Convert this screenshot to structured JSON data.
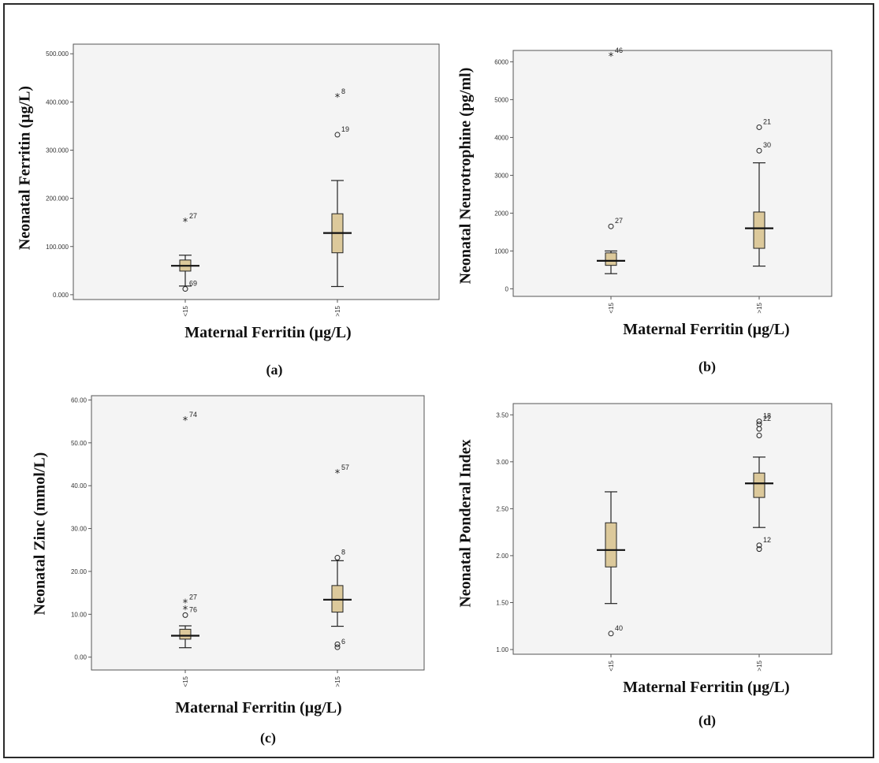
{
  "chart_data": [
    {
      "type": "boxplot",
      "id": "a",
      "caption": "(a)",
      "xlabel": "Maternal Ferritin (µg/L)",
      "ylabel": "Neonatal Ferritin (µg/L)",
      "ylim": [
        -10,
        520
      ],
      "yticks": [
        0,
        100,
        200,
        300,
        400,
        500
      ],
      "ytick_labels": [
        "0.000",
        "100.000",
        "200.000",
        "300.000",
        "400.000",
        "500.000"
      ],
      "categories": [
        "<15",
        ">15"
      ],
      "boxes": [
        {
          "category": "<15",
          "min": 18,
          "q1": 49,
          "median": 60,
          "q3": 72,
          "max": 82,
          "outliers": [
            {
              "value": 12,
              "label": "69",
              "marker": "circle"
            },
            {
              "value": 152,
              "label": "27",
              "marker": "star"
            }
          ]
        },
        {
          "category": ">15",
          "min": 17,
          "q1": 87,
          "median": 128,
          "q3": 168,
          "max": 237,
          "outliers": [
            {
              "value": 332,
              "label": "19",
              "marker": "circle"
            },
            {
              "value": 410,
              "label": "8",
              "marker": "star"
            }
          ]
        }
      ]
    },
    {
      "type": "boxplot",
      "id": "b",
      "caption": "(b)",
      "xlabel": "Maternal Ferritin (µg/L)",
      "ylabel": "Neonatal Neurotrophine (pg/ml)",
      "ylim": [
        -200,
        6300
      ],
      "yticks": [
        0,
        1000,
        2000,
        3000,
        4000,
        5000,
        6000
      ],
      "ytick_labels": [
        "0",
        "1000",
        "2000",
        "3000",
        "4000",
        "5000",
        "6000"
      ],
      "categories": [
        "<15",
        ">15"
      ],
      "boxes": [
        {
          "category": "<15",
          "min": 400,
          "q1": 620,
          "median": 740,
          "q3": 950,
          "max": 1000,
          "outliers": [
            {
              "value": 1650,
              "label": "27",
              "marker": "circle"
            },
            {
              "value": 6150,
              "label": "46",
              "marker": "star"
            }
          ]
        },
        {
          "category": ">15",
          "min": 600,
          "q1": 1070,
          "median": 1600,
          "q3": 2030,
          "max": 3330,
          "outliers": [
            {
              "value": 3650,
              "label": "30",
              "marker": "circle"
            },
            {
              "value": 4270,
              "label": "21",
              "marker": "circle"
            }
          ]
        }
      ]
    },
    {
      "type": "boxplot",
      "id": "c",
      "caption": "(c)",
      "xlabel": "Maternal Ferritin (µg/L)",
      "ylabel": "Neonatal Zinc (mmol/L)",
      "ylim": [
        -3,
        61
      ],
      "yticks": [
        0,
        10,
        20,
        30,
        40,
        50,
        60
      ],
      "ytick_labels": [
        "0.00",
        "10.00",
        "20.00",
        "30.00",
        "40.00",
        "50.00",
        "60.00"
      ],
      "categories": [
        "<15",
        ">15"
      ],
      "boxes": [
        {
          "category": "<15",
          "min": 2.2,
          "q1": 4.2,
          "median": 5.0,
          "q3": 6.5,
          "max": 7.3,
          "outliers": [
            {
              "value": 9.8,
              "label": "76",
              "marker": "circle"
            },
            {
              "value": 12.7,
              "label": "27",
              "marker": "star"
            },
            {
              "value": 11.2,
              "label": "",
              "marker": "star"
            },
            {
              "value": 55.3,
              "label": "74",
              "marker": "star"
            }
          ]
        },
        {
          "category": ">15",
          "min": 7.2,
          "q1": 10.5,
          "median": 13.4,
          "q3": 16.7,
          "max": 22.5,
          "outliers": [
            {
              "value": 2.3,
              "label": "6",
              "marker": "circle"
            },
            {
              "value": 3.0,
              "label": "",
              "marker": "circle"
            },
            {
              "value": 23.2,
              "label": "8",
              "marker": "circle"
            },
            {
              "value": 43.0,
              "label": "57",
              "marker": "star"
            }
          ]
        }
      ]
    },
    {
      "type": "boxplot",
      "id": "d",
      "caption": "(d)",
      "xlabel": "Maternal Ferritin (µg/L)",
      "ylabel": "Neonatal Ponderal Index",
      "ylim": [
        0.95,
        3.62
      ],
      "yticks": [
        1.0,
        1.5,
        2.0,
        2.5,
        3.0,
        3.5
      ],
      "ytick_labels": [
        "1.00",
        "1.50",
        "2.00",
        "2.50",
        "3.00",
        "3.50"
      ],
      "categories": [
        "<15",
        ">15"
      ],
      "boxes": [
        {
          "category": "<15",
          "min": 1.49,
          "q1": 1.88,
          "median": 2.06,
          "q3": 2.35,
          "max": 2.68,
          "outliers": [
            {
              "value": 1.17,
              "label": "40",
              "marker": "circle"
            }
          ]
        },
        {
          "category": ">15",
          "min": 2.3,
          "q1": 2.62,
          "median": 2.77,
          "q3": 2.88,
          "max": 3.05,
          "outliers": [
            {
              "value": 2.07,
              "label": "",
              "marker": "circle"
            },
            {
              "value": 2.11,
              "label": "12",
              "marker": "circle"
            },
            {
              "value": 3.28,
              "label": "",
              "marker": "circle"
            },
            {
              "value": 3.35,
              "label": "",
              "marker": "circle"
            },
            {
              "value": 3.4,
              "label": "22",
              "marker": "circle"
            },
            {
              "value": 3.43,
              "label": "18",
              "marker": "circle"
            }
          ]
        }
      ]
    }
  ],
  "colors": {
    "box_fill": "#dcc99b",
    "plot_bg": "#f4f4f4",
    "line": "#222222",
    "median": "#111111"
  }
}
